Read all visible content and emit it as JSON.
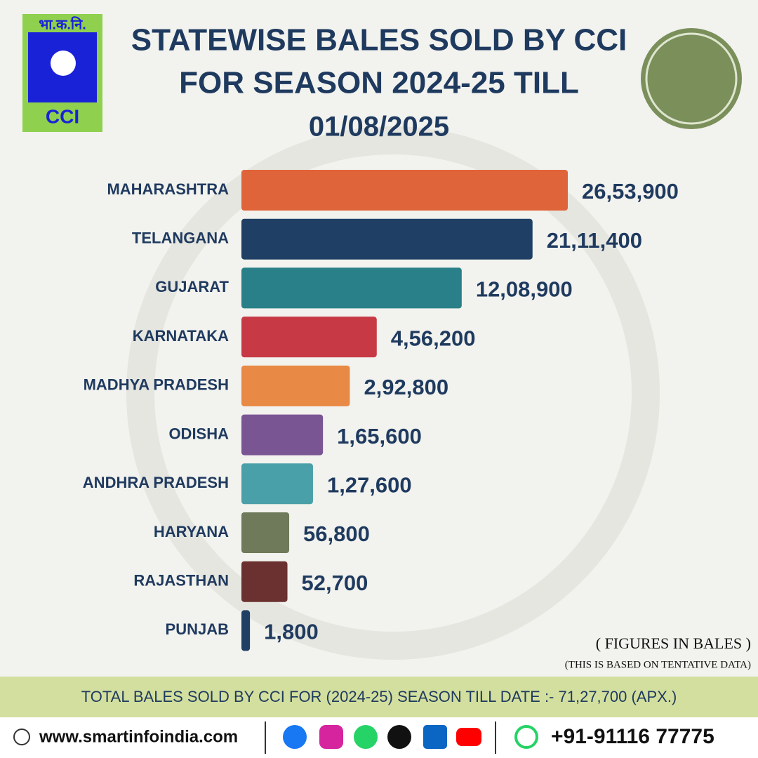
{
  "logo": {
    "top": "भा.क.नि.",
    "bottom": "CCI"
  },
  "chart_data": {
    "type": "bar",
    "orientation": "horizontal",
    "title": [
      "STATEWISE BALES SOLD BY CCI",
      "FOR SEASON 2024-25 TILL",
      "01/08/2025"
    ],
    "categories": [
      "MAHARASHTRA",
      "TELANGANA",
      "GUJARAT",
      "KARNATAKA",
      "MADHYA PRADESH",
      "ODISHA",
      "ANDHRA PRADESH",
      "HARYANA",
      "RAJASTHAN",
      "PUNJAB"
    ],
    "values": [
      2653900,
      2111400,
      1208900,
      456200,
      292800,
      165600,
      127600,
      56800,
      52700,
      1800
    ],
    "value_labels": [
      "26,53,900",
      "21,11,400",
      "12,08,900",
      "4,56,200",
      "2,92,800",
      "1,65,600",
      "1,27,600",
      "56,800",
      "52,700",
      "1,800"
    ],
    "colors": [
      "#e0643a",
      "#1f4064",
      "#2a8088",
      "#c73a45",
      "#e88a45",
      "#7a5594",
      "#4aa0a8",
      "#6e7a5a",
      "#6b3030",
      "#1f4064"
    ],
    "note": "( FIGURES IN BALES )",
    "subnote": "(THIS IS BASED ON TENTATIVE DATA)"
  },
  "footer": {
    "total": "TOTAL BALES SOLD BY CCI FOR (2024-25) SEASON TILL DATE :- 71,27,700 (APX.)",
    "website": "www.smartinfoindia.com",
    "phone": "+91-91116 77775"
  }
}
